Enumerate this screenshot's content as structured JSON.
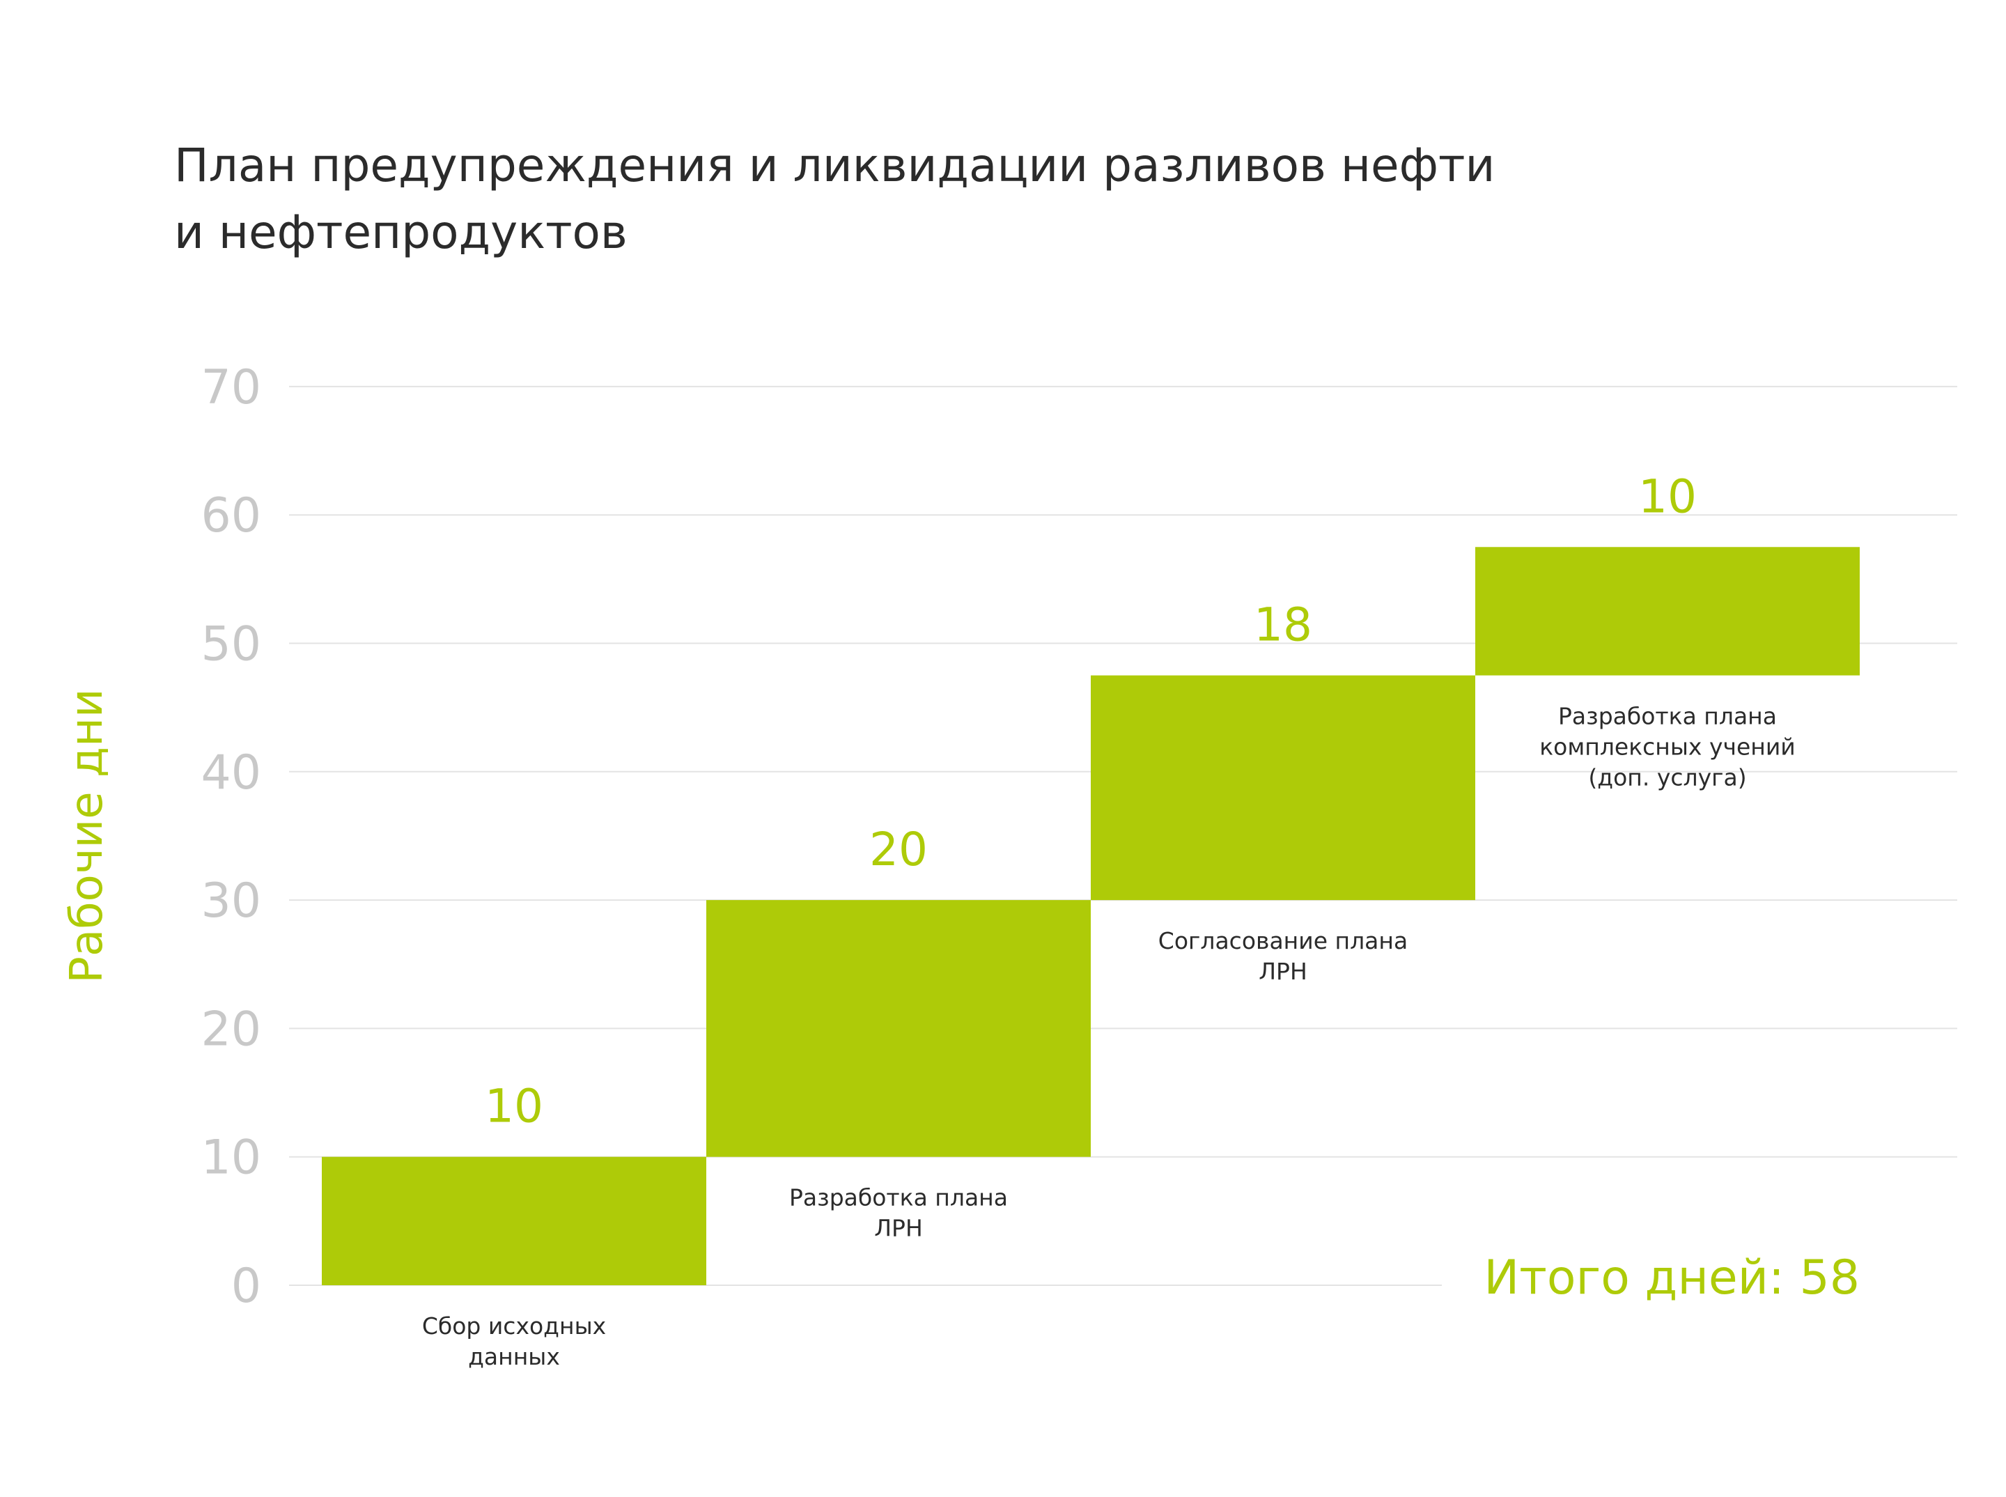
{
  "title_line1": "План предупреждения и ликвидации разливов нефти",
  "title_line2": "и нефтепродуктов",
  "total_label": "Итого дней: 58",
  "chart_data": {
    "type": "bar",
    "subtype": "waterfall",
    "ylabel": "Рабочие дни",
    "ylim": [
      0,
      70
    ],
    "yticks": [
      0,
      10,
      20,
      30,
      40,
      50,
      60,
      70
    ],
    "grid": true,
    "bar_color": "#aecb08",
    "tick_color": "#c8c8c8",
    "categories": [
      {
        "lines": [
          "Сбор исходных",
          "данных"
        ],
        "start": 0,
        "end": 10,
        "value": 10
      },
      {
        "lines": [
          "Разработка плана",
          "ЛРН"
        ],
        "start": 10,
        "end": 30,
        "value": 20
      },
      {
        "lines": [
          "Согласование плана",
          "ЛРН"
        ],
        "start": 30,
        "end": 47.5,
        "value": 18
      },
      {
        "lines": [
          "Разработка плана",
          "комплексных учений",
          "(доп. услуга)"
        ],
        "start": 47.5,
        "end": 57.5,
        "value": 10
      }
    ]
  }
}
